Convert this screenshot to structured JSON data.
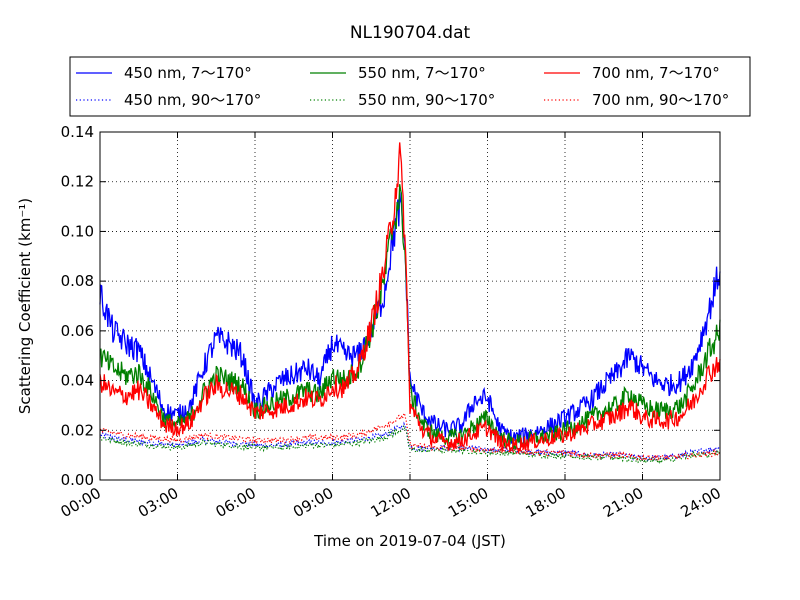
{
  "chart_data": {
    "type": "line",
    "title": "NL190704.dat",
    "xlabel": "Time on 2019-07-04 (JST)",
    "ylabel": "Scattering Coefficient (km⁻¹)",
    "x_range_hours": [
      0,
      24
    ],
    "ylim": [
      0.0,
      0.14
    ],
    "x_ticks": [
      "00:00",
      "03:00",
      "06:00",
      "09:00",
      "12:00",
      "15:00",
      "18:00",
      "21:00",
      "24:00"
    ],
    "y_ticks": [
      "0.00",
      "0.02",
      "0.04",
      "0.06",
      "0.08",
      "0.10",
      "0.12",
      "0.14"
    ],
    "grid": true,
    "legend_position": "top",
    "series": [
      {
        "name": "450 nm, 7～170°",
        "color": "#0000ff",
        "style": "solid",
        "x": [
          0,
          0.5,
          1,
          1.5,
          2,
          2.5,
          3,
          3.5,
          4,
          4.5,
          5,
          5.5,
          6,
          6.5,
          7,
          7.5,
          8,
          8.5,
          9,
          9.5,
          10,
          10.5,
          11,
          11.3,
          11.6,
          11.8,
          12,
          12.5,
          13,
          13.5,
          14,
          14.5,
          15,
          15.5,
          16,
          16.5,
          17,
          17.5,
          18,
          18.5,
          19,
          19.5,
          20,
          20.5,
          21,
          21.5,
          22,
          22.5,
          23,
          23.5,
          24
        ],
        "y": [
          0.075,
          0.06,
          0.055,
          0.052,
          0.04,
          0.028,
          0.026,
          0.03,
          0.045,
          0.057,
          0.055,
          0.05,
          0.03,
          0.035,
          0.04,
          0.042,
          0.045,
          0.04,
          0.055,
          0.05,
          0.05,
          0.06,
          0.075,
          0.095,
          0.11,
          0.095,
          0.04,
          0.027,
          0.022,
          0.02,
          0.022,
          0.032,
          0.033,
          0.02,
          0.017,
          0.018,
          0.02,
          0.022,
          0.025,
          0.028,
          0.032,
          0.038,
          0.043,
          0.05,
          0.045,
          0.04,
          0.038,
          0.04,
          0.048,
          0.065,
          0.085
        ]
      },
      {
        "name": "550 nm, 7～170°",
        "color": "#008000",
        "style": "solid",
        "x": [
          0,
          0.5,
          1,
          1.5,
          2,
          2.5,
          3,
          3.5,
          4,
          4.5,
          5,
          5.5,
          6,
          6.5,
          7,
          7.5,
          8,
          8.5,
          9,
          9.5,
          10,
          10.5,
          11,
          11.3,
          11.6,
          11.8,
          12,
          12.5,
          13,
          13.5,
          14,
          14.5,
          15,
          15.5,
          16,
          16.5,
          17,
          17.5,
          18,
          18.5,
          19,
          19.5,
          20,
          20.5,
          21,
          21.5,
          22,
          22.5,
          23,
          23.5,
          24
        ],
        "y": [
          0.05,
          0.045,
          0.042,
          0.043,
          0.035,
          0.024,
          0.022,
          0.025,
          0.035,
          0.042,
          0.04,
          0.038,
          0.028,
          0.03,
          0.032,
          0.034,
          0.036,
          0.034,
          0.042,
          0.04,
          0.045,
          0.06,
          0.08,
          0.1,
          0.115,
          0.095,
          0.035,
          0.022,
          0.018,
          0.017,
          0.018,
          0.022,
          0.025,
          0.017,
          0.015,
          0.016,
          0.017,
          0.018,
          0.02,
          0.022,
          0.025,
          0.028,
          0.03,
          0.035,
          0.03,
          0.028,
          0.028,
          0.03,
          0.038,
          0.05,
          0.06
        ]
      },
      {
        "name": "700 nm, 7～170°",
        "color": "#ff0000",
        "style": "solid",
        "x": [
          0,
          0.5,
          1,
          1.5,
          2,
          2.5,
          3,
          3.5,
          4,
          4.5,
          5,
          5.5,
          6,
          6.5,
          7,
          7.5,
          8,
          8.5,
          9,
          9.5,
          10,
          10.5,
          11,
          11.3,
          11.6,
          11.8,
          12,
          12.5,
          13,
          13.5,
          14,
          14.5,
          15,
          15.5,
          16,
          16.5,
          17,
          17.5,
          18,
          18.5,
          19,
          19.5,
          20,
          20.5,
          21,
          21.5,
          22,
          22.5,
          23,
          23.5,
          24
        ],
        "y": [
          0.04,
          0.035,
          0.034,
          0.036,
          0.03,
          0.022,
          0.021,
          0.023,
          0.033,
          0.038,
          0.036,
          0.034,
          0.027,
          0.028,
          0.029,
          0.031,
          0.033,
          0.032,
          0.038,
          0.037,
          0.045,
          0.062,
          0.085,
          0.105,
          0.13,
          0.1,
          0.03,
          0.02,
          0.016,
          0.015,
          0.016,
          0.019,
          0.021,
          0.015,
          0.014,
          0.015,
          0.016,
          0.017,
          0.018,
          0.02,
          0.022,
          0.024,
          0.026,
          0.03,
          0.025,
          0.024,
          0.024,
          0.026,
          0.032,
          0.042,
          0.048
        ]
      },
      {
        "name": "450 nm, 90～170°",
        "color": "#0000ff",
        "style": "dotted",
        "x": [
          0,
          1,
          2,
          3,
          4,
          5,
          6,
          7,
          8,
          9,
          10,
          11,
          11.8,
          12,
          13,
          14,
          15,
          16,
          17,
          18,
          19,
          20,
          21,
          22,
          23,
          24
        ],
        "y": [
          0.018,
          0.016,
          0.015,
          0.014,
          0.016,
          0.015,
          0.014,
          0.014,
          0.015,
          0.015,
          0.016,
          0.018,
          0.022,
          0.013,
          0.013,
          0.013,
          0.012,
          0.012,
          0.011,
          0.011,
          0.01,
          0.01,
          0.009,
          0.009,
          0.011,
          0.013
        ]
      },
      {
        "name": "550 nm, 90～170°",
        "color": "#008000",
        "style": "dotted",
        "x": [
          0,
          1,
          2,
          3,
          4,
          5,
          6,
          7,
          8,
          9,
          10,
          11,
          11.8,
          12,
          13,
          14,
          15,
          16,
          17,
          18,
          19,
          20,
          21,
          22,
          23,
          24
        ],
        "y": [
          0.017,
          0.015,
          0.014,
          0.013,
          0.015,
          0.014,
          0.013,
          0.013,
          0.014,
          0.014,
          0.015,
          0.017,
          0.021,
          0.012,
          0.012,
          0.012,
          0.011,
          0.011,
          0.01,
          0.01,
          0.009,
          0.009,
          0.008,
          0.008,
          0.01,
          0.011
        ]
      },
      {
        "name": "700 nm, 90～170°",
        "color": "#ff0000",
        "style": "dotted",
        "x": [
          0,
          1,
          2,
          3,
          4,
          5,
          6,
          7,
          8,
          9,
          10,
          11,
          11.8,
          12,
          13,
          14,
          15,
          16,
          17,
          18,
          19,
          20,
          21,
          22,
          23,
          24
        ],
        "y": [
          0.02,
          0.018,
          0.017,
          0.016,
          0.018,
          0.017,
          0.016,
          0.016,
          0.017,
          0.017,
          0.018,
          0.022,
          0.026,
          0.014,
          0.013,
          0.013,
          0.012,
          0.012,
          0.011,
          0.011,
          0.01,
          0.01,
          0.009,
          0.009,
          0.01,
          0.011
        ]
      }
    ],
    "legend": {
      "entries_order": [
        0,
        1,
        2,
        3,
        4,
        5
      ]
    }
  }
}
